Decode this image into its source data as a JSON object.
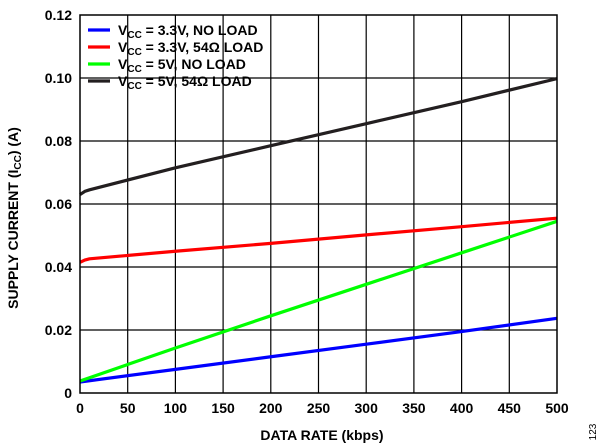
{
  "chart_data": {
    "type": "line",
    "xlabel": "DATA RATE (kbps)",
    "ylabel": {
      "main": "SUPPLY CURRENT (I",
      "sub": "CC",
      "tail": ") (A)"
    },
    "xlim": [
      0,
      500
    ],
    "ylim": [
      0,
      0.12
    ],
    "x_ticks": [
      0,
      50,
      100,
      150,
      200,
      250,
      300,
      350,
      400,
      450,
      500
    ],
    "y_ticks": [
      0,
      0.02,
      0.04,
      0.06,
      0.08,
      0.1,
      0.12
    ],
    "y_tick_labels": [
      "0",
      "0.02",
      "0.04",
      "0.06",
      "0.08",
      "0.10",
      "0.12"
    ],
    "grid": true,
    "legend_position": "top-left",
    "series": [
      {
        "name": {
          "pre": "V",
          "sub": "CC",
          "post": " = 3.3V, NO LOAD"
        },
        "color": "#0000ff",
        "x": [
          0,
          100,
          200,
          300,
          400,
          500
        ],
        "y": [
          0.0035,
          0.0075,
          0.0115,
          0.0155,
          0.0195,
          0.0237
        ]
      },
      {
        "name": {
          "pre": "V",
          "sub": "CC",
          "post": " = 3.3V, 54Ω LOAD"
        },
        "color": "#ff0000",
        "x": [
          0,
          5,
          10,
          100,
          200,
          300,
          400,
          500
        ],
        "y": [
          0.0415,
          0.0422,
          0.0426,
          0.045,
          0.0475,
          0.0502,
          0.0528,
          0.0555
        ]
      },
      {
        "name": {
          "pre": "V",
          "sub": "CC",
          "post": " = 5V, NO LOAD"
        },
        "color": "#00ff00",
        "x": [
          0,
          100,
          200,
          300,
          400,
          500
        ],
        "y": [
          0.0038,
          0.0143,
          0.0245,
          0.0345,
          0.0445,
          0.0545
        ]
      },
      {
        "name": {
          "pre": "V",
          "sub": "CC",
          "post": " = 5V, 54Ω LOAD"
        },
        "color": "#231f20",
        "x": [
          0,
          5,
          10,
          100,
          200,
          300,
          400,
          500
        ],
        "y": [
          0.063,
          0.064,
          0.0645,
          0.0715,
          0.0785,
          0.0855,
          0.0925,
          0.0998
        ]
      }
    ]
  },
  "figure_number": "123"
}
